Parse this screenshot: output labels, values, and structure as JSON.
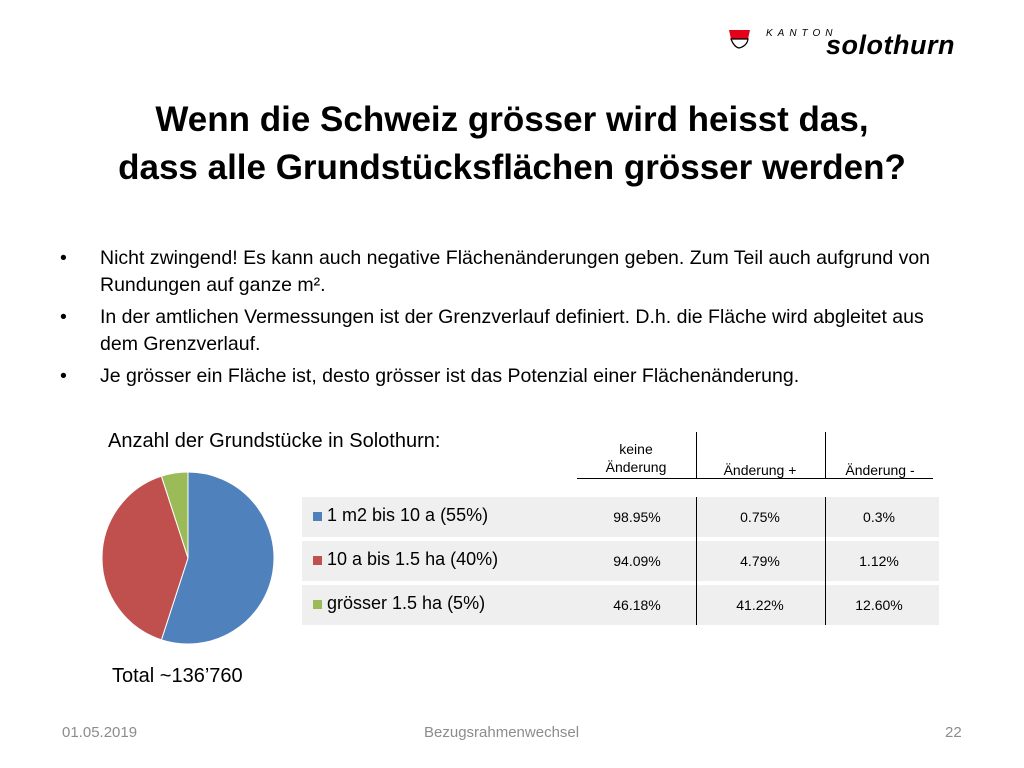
{
  "logo": {
    "small": "KANTON",
    "big": "solothurn",
    "flag_color": "#e2001a"
  },
  "title": {
    "line1": "Wenn die Schweiz grösser wird heisst das,",
    "line2": "dass alle Grundstücksflächen grösser werden?"
  },
  "bullets": [
    {
      "marker": "•",
      "text": "Nicht zwingend! Es kann auch negative Flächenänderungen geben. Zum Teil auch aufgrund von Rundungen auf ganze m²."
    },
    {
      "marker": "•",
      "text": "In der amtlichen Vermessungen ist der Grenzverlauf definiert. D.h. die Fläche wird abgleitet aus dem Grenzverlauf."
    },
    {
      "marker": "•",
      "text": "Je grösser ein Fläche ist, desto grösser ist das Potenzial einer Flächenänderung."
    }
  ],
  "chart_data": {
    "type": "pie",
    "title": "Anzahl der Grundstücke in Solothurn:",
    "categories": [
      "1 m2 bis 10 a (55%)",
      "10 a bis 1.5 ha (40%)",
      "grösser 1.5 ha (5%)"
    ],
    "values": [
      55,
      40,
      5
    ],
    "colors": [
      "#4f81bd",
      "#c0504d",
      "#9bbb59"
    ],
    "legend": "right",
    "total_label": "Total ~136’760"
  },
  "table": {
    "headers": [
      "keine\nÄnderung",
      "Änderung +",
      "Änderung -"
    ],
    "rows": [
      [
        "98.95%",
        "0.75%",
        "0.3%"
      ],
      [
        "94.09%",
        "4.79%",
        "1.12%"
      ],
      [
        "46.18%",
        "41.22%",
        "12.60%"
      ]
    ]
  },
  "footer": {
    "date": "01.05.2019",
    "center": "Bezugsrahmenwechsel",
    "page": "22"
  }
}
